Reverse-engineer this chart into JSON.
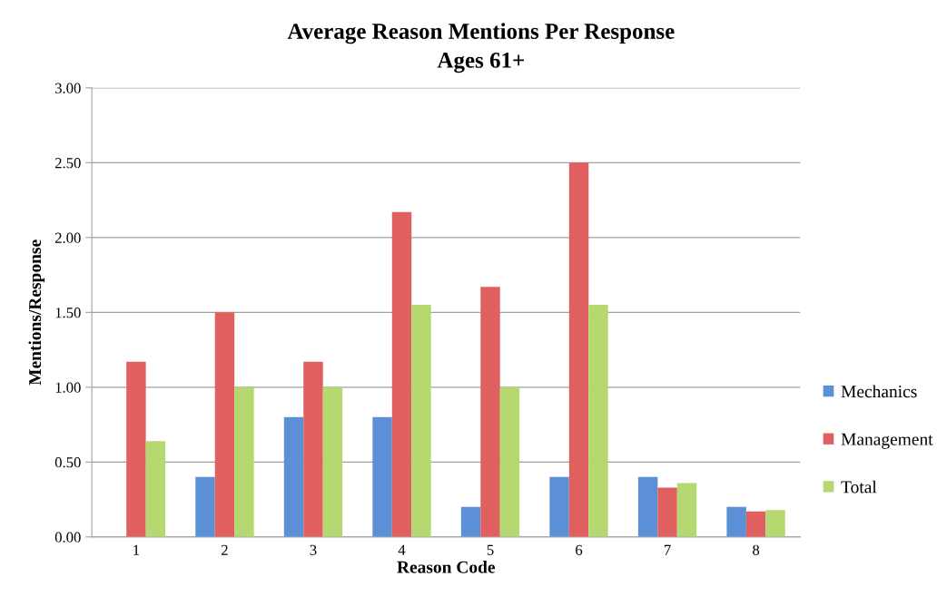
{
  "chart_data": {
    "type": "bar",
    "title": "Average Reason Mentions Per Response",
    "subtitle": "Ages 61+",
    "xlabel": "Reason Code",
    "ylabel": "Mentions/Response",
    "categories": [
      "1",
      "2",
      "3",
      "4",
      "5",
      "6",
      "7",
      "8"
    ],
    "series": [
      {
        "name": "Mechanics",
        "color": "#5b8fd6",
        "values": [
          0,
          0.4,
          0.8,
          0.8,
          0.2,
          0.4,
          0.4,
          0.2
        ]
      },
      {
        "name": "Management",
        "color": "#e06060",
        "values": [
          1.17,
          1.5,
          1.17,
          2.17,
          1.67,
          2.5,
          0.33,
          0.17
        ]
      },
      {
        "name": "Total",
        "color": "#b5d970",
        "values": [
          0.64,
          1.0,
          1.0,
          1.55,
          1.0,
          1.55,
          0.36,
          0.18
        ]
      }
    ],
    "ylim": [
      0,
      3
    ],
    "yticks": [
      {
        "value": 0,
        "label": "0.00"
      },
      {
        "value": 0.5,
        "label": "0.50"
      },
      {
        "value": 1,
        "label": "1.00"
      },
      {
        "value": 1.5,
        "label": "1.50"
      },
      {
        "value": 2,
        "label": "2.00"
      },
      {
        "value": 2.5,
        "label": "2.50"
      },
      {
        "value": 3,
        "label": "3.00"
      }
    ],
    "grid": "y",
    "legend": "right"
  }
}
